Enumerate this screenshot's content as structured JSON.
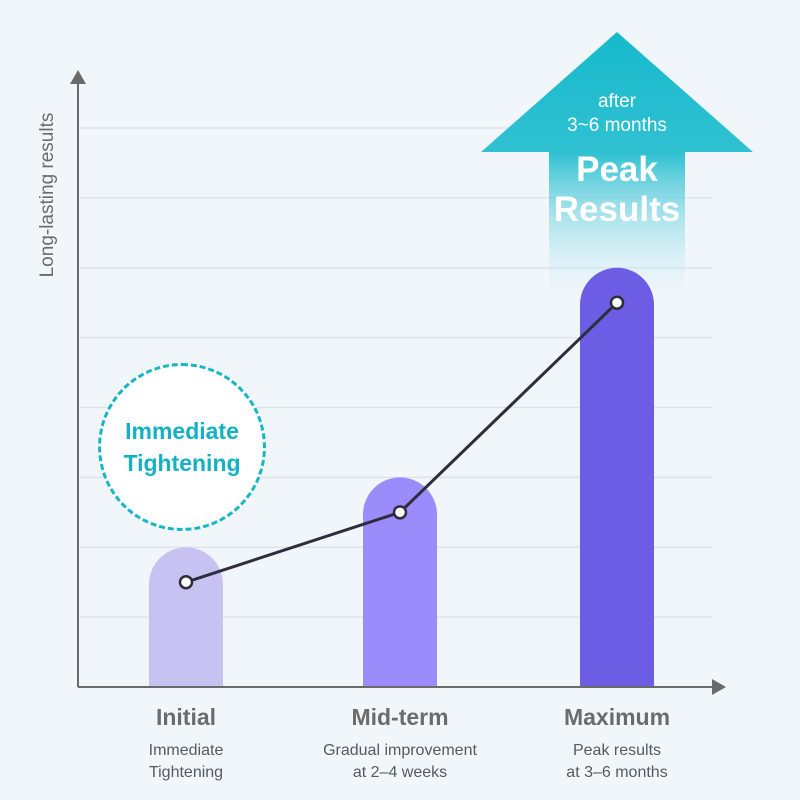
{
  "chart_data": {
    "type": "bar",
    "categories": [
      "Initial",
      "Mid-term",
      "Maximum"
    ],
    "category_descriptions": [
      [
        "Immediate",
        "Tightening"
      ],
      [
        "Gradual improvement",
        "at 2–4 weeks"
      ],
      [
        "Peak results",
        "at 3–6 months"
      ]
    ],
    "values": [
      2,
      3,
      6
    ],
    "line_values": [
      1.5,
      2.5,
      5.5
    ],
    "ylabel": "Long-lasting results",
    "xlabel": "",
    "ylim": [
      0,
      8
    ],
    "grid": true,
    "bar_colors": [
      "#c8c2f2",
      "#9b8cfb",
      "#6d5ce4"
    ]
  },
  "callout": {
    "lines": [
      "Immediate",
      "Tightening"
    ],
    "color": "#14b6c7"
  },
  "arrow": {
    "subtitle_lines": [
      "after",
      "3~6 months"
    ],
    "title_lines": [
      "Peak",
      "Results"
    ],
    "color": "#17b9cc"
  }
}
